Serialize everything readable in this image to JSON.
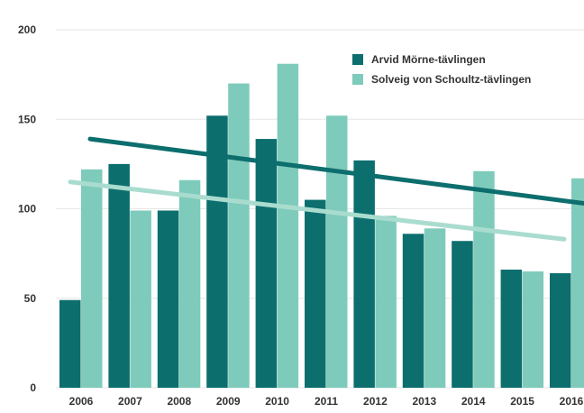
{
  "chart_data": {
    "type": "bar",
    "categories": [
      "2006",
      "2007",
      "2008",
      "2009",
      "2010",
      "2011",
      "2012",
      "2013",
      "2014",
      "2015",
      "2016"
    ],
    "series": [
      {
        "name": "Arvid Mörne-tävlingen",
        "color": "#0d6e6e",
        "values": [
          49,
          125,
          99,
          152,
          139,
          105,
          127,
          86,
          82,
          66,
          64
        ],
        "trend": [
          139,
          103
        ]
      },
      {
        "name": "Solveig von Schoultz-tävlingen",
        "color": "#7ecbbb",
        "values": [
          122,
          99,
          116,
          170,
          181,
          152,
          96,
          89,
          121,
          65,
          117
        ],
        "trend": [
          115,
          83
        ]
      }
    ],
    "title": "",
    "xlabel": "",
    "ylabel": "",
    "ylim": [
      0,
      200
    ],
    "yticks": [
      "0",
      "50",
      "100",
      "150",
      "200"
    ],
    "grid": true,
    "legend_position": "top-right"
  }
}
